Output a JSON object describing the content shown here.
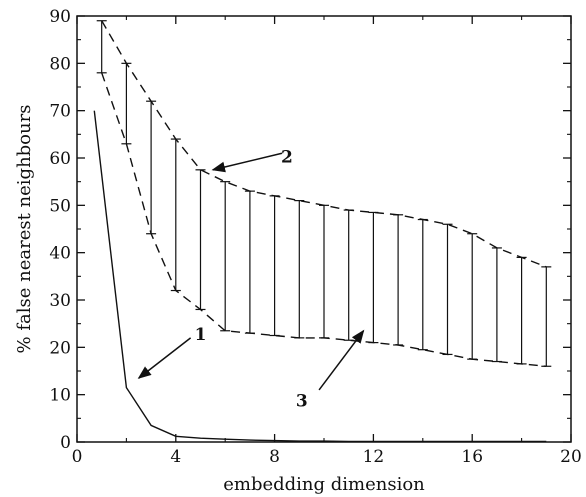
{
  "chart_data": {
    "type": "line",
    "xlabel": "embedding dimension",
    "ylabel": "% false nearest neighbours",
    "xlim": [
      0,
      20
    ],
    "ylim": [
      0,
      90
    ],
    "xticks": [
      0,
      4,
      8,
      12,
      16,
      20
    ],
    "yticks": [
      0,
      10,
      20,
      30,
      40,
      50,
      60,
      70,
      80,
      90
    ],
    "grid": false,
    "series": [
      {
        "id": "curve1",
        "style": "solid",
        "x": [
          0.7,
          2,
          3,
          4,
          5,
          6,
          7,
          8,
          9,
          10,
          11,
          12,
          13,
          14,
          15,
          16,
          17,
          18,
          19
        ],
        "y": [
          70,
          11.5,
          3.5,
          1.2,
          0.8,
          0.6,
          0.4,
          0.3,
          0.2,
          0.2,
          0.1,
          0.1,
          0.1,
          0.1,
          0.1,
          0.1,
          0.1,
          0.1,
          0.1
        ]
      },
      {
        "id": "upper",
        "style": "dashed",
        "x": [
          1,
          2,
          3,
          4,
          5,
          6,
          7,
          8,
          9,
          10,
          11,
          12,
          13,
          14,
          15,
          16,
          17,
          18,
          19
        ],
        "y": [
          89,
          80,
          72,
          64,
          57.5,
          55,
          53,
          52,
          51,
          50,
          49,
          48.5,
          48,
          47,
          46,
          44,
          41,
          39,
          37
        ]
      },
      {
        "id": "lower",
        "style": "dashed",
        "x": [
          1,
          2,
          3,
          4,
          5,
          6,
          7,
          8,
          9,
          10,
          11,
          12,
          13,
          14,
          15,
          16,
          17,
          18,
          19
        ],
        "y": [
          78,
          63,
          44,
          32,
          28,
          23.5,
          23,
          22.5,
          22,
          22,
          21.5,
          21,
          20.5,
          19.5,
          18.5,
          17.5,
          17,
          16.5,
          16
        ]
      }
    ],
    "error_bars": {
      "x": [
        1,
        2,
        3,
        4,
        5,
        6,
        7,
        8,
        9,
        10,
        11,
        12,
        13,
        14,
        15,
        16,
        17,
        18,
        19
      ],
      "low": [
        78,
        63,
        44,
        32,
        28,
        23.5,
        23,
        22.5,
        22,
        22,
        21.5,
        21,
        20.5,
        19.5,
        18.5,
        17.5,
        17,
        16.5,
        16
      ],
      "high": [
        89,
        80,
        72,
        64,
        57.5,
        55,
        53,
        52,
        51,
        50,
        49,
        48.5,
        48,
        47,
        46,
        44,
        41,
        39,
        37
      ]
    },
    "annotations": [
      {
        "text": "1",
        "label_at": [
          5,
          21.5
        ],
        "arrow_from": [
          4.6,
          22
        ],
        "arrow_to": [
          2.5,
          13.5
        ]
      },
      {
        "text": "2",
        "label_at": [
          8.5,
          59
        ],
        "arrow_from": [
          8.3,
          61
        ],
        "arrow_to": [
          5.5,
          57.5
        ]
      },
      {
        "text": "3",
        "label_at": [
          9.1,
          7.5
        ],
        "arrow_from": [
          9.8,
          11
        ],
        "arrow_to": [
          11.6,
          23.5
        ]
      }
    ]
  }
}
